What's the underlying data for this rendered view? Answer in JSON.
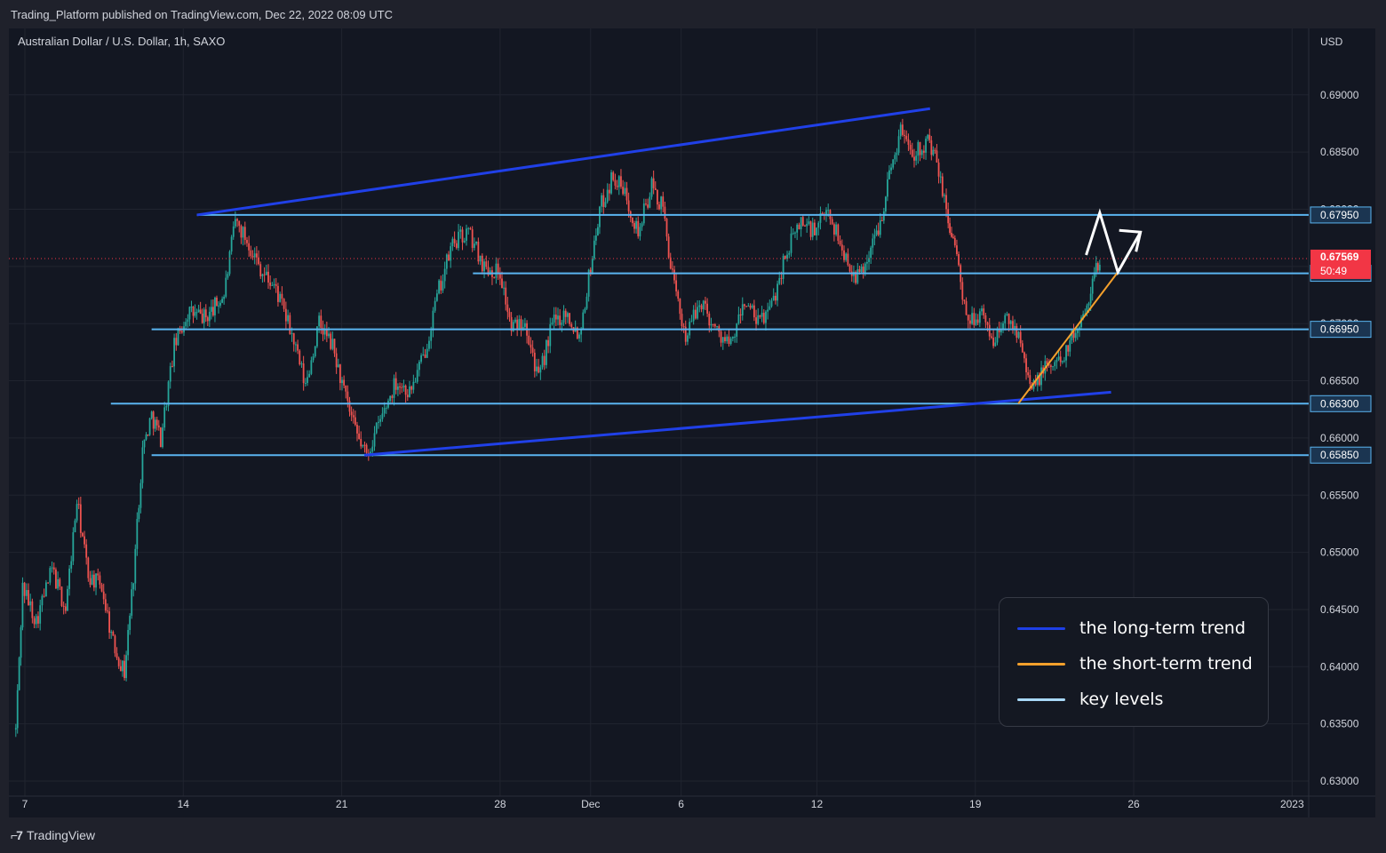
{
  "header": {
    "published_text": "Trading_Platform published on TradingView.com, Dec 22, 2022 08:09 UTC"
  },
  "footer": {
    "brand_label": "TradingView",
    "brand_icon": "tradingview-logo-icon"
  },
  "chart_data": {
    "type": "candlestick",
    "symbol_label": "Australian Dollar / U.S. Dollar, 1h, SAXO",
    "currency_label": "USD",
    "y_ticks": [
      "0.69000",
      "0.68500",
      "0.68000",
      "0.67500",
      "0.67000",
      "0.66500",
      "0.66000",
      "0.65500",
      "0.65000",
      "0.64500",
      "0.64000",
      "0.63500",
      "0.63000"
    ],
    "x_ticks": [
      {
        "label": "7",
        "day": 7
      },
      {
        "label": "14",
        "day": 14
      },
      {
        "label": "21",
        "day": 21
      },
      {
        "label": "28",
        "day": 28
      },
      {
        "label": "Dec",
        "day": 32
      },
      {
        "label": "6",
        "day": 36
      },
      {
        "label": "12",
        "day": 42
      },
      {
        "label": "19",
        "day": 49
      },
      {
        "label": "26",
        "day": 56
      },
      {
        "label": "2023",
        "day": 63
      }
    ],
    "ylim": [
      0.63,
      0.69
    ],
    "grid": true,
    "price_path": [
      [
        6.6,
        0.6345
      ],
      [
        6.9,
        0.647
      ],
      [
        7.5,
        0.644
      ],
      [
        8.2,
        0.6485
      ],
      [
        8.8,
        0.645
      ],
      [
        9.3,
        0.6545
      ],
      [
        9.8,
        0.648
      ],
      [
        10.4,
        0.647
      ],
      [
        10.9,
        0.642
      ],
      [
        11.4,
        0.6395
      ],
      [
        11.8,
        0.648
      ],
      [
        12.2,
        0.659
      ],
      [
        12.6,
        0.662
      ],
      [
        13.0,
        0.66
      ],
      [
        13.6,
        0.668
      ],
      [
        14.2,
        0.671
      ],
      [
        15.0,
        0.6705
      ],
      [
        15.8,
        0.6725
      ],
      [
        16.3,
        0.679
      ],
      [
        16.9,
        0.677
      ],
      [
        17.5,
        0.6745
      ],
      [
        18.1,
        0.673
      ],
      [
        18.8,
        0.669
      ],
      [
        19.4,
        0.6645
      ],
      [
        20.0,
        0.67
      ],
      [
        20.6,
        0.668
      ],
      [
        21.1,
        0.664
      ],
      [
        21.6,
        0.6605
      ],
      [
        22.1,
        0.6585
      ],
      [
        22.8,
        0.662
      ],
      [
        23.4,
        0.665
      ],
      [
        24.0,
        0.664
      ],
      [
        24.6,
        0.667
      ],
      [
        25.3,
        0.673
      ],
      [
        25.9,
        0.677
      ],
      [
        26.6,
        0.678
      ],
      [
        27.3,
        0.675
      ],
      [
        28.0,
        0.6745
      ],
      [
        28.5,
        0.6695
      ],
      [
        29.1,
        0.6705
      ],
      [
        29.7,
        0.665
      ],
      [
        30.3,
        0.67
      ],
      [
        30.9,
        0.671
      ],
      [
        31.5,
        0.669
      ],
      [
        32.0,
        0.675
      ],
      [
        32.4,
        0.68
      ],
      [
        33.0,
        0.683
      ],
      [
        33.6,
        0.681
      ],
      [
        34.1,
        0.678
      ],
      [
        34.7,
        0.682
      ],
      [
        35.2,
        0.68
      ],
      [
        35.7,
        0.673
      ],
      [
        36.2,
        0.669
      ],
      [
        36.9,
        0.672
      ],
      [
        37.5,
        0.6695
      ],
      [
        38.2,
        0.668
      ],
      [
        38.8,
        0.672
      ],
      [
        39.4,
        0.67
      ],
      [
        40.0,
        0.6715
      ],
      [
        40.6,
        0.676
      ],
      [
        41.3,
        0.679
      ],
      [
        41.9,
        0.678
      ],
      [
        42.5,
        0.68
      ],
      [
        43.2,
        0.676
      ],
      [
        43.8,
        0.674
      ],
      [
        44.3,
        0.676
      ],
      [
        44.8,
        0.679
      ],
      [
        45.2,
        0.683
      ],
      [
        45.7,
        0.687
      ],
      [
        46.3,
        0.685
      ],
      [
        46.9,
        0.686
      ],
      [
        47.3,
        0.684
      ],
      [
        47.8,
        0.679
      ],
      [
        48.1,
        0.677
      ],
      [
        48.6,
        0.67
      ],
      [
        49.2,
        0.671
      ],
      [
        49.8,
        0.6685
      ],
      [
        50.4,
        0.6705
      ],
      [
        51.0,
        0.669
      ],
      [
        51.5,
        0.664
      ],
      [
        52.0,
        0.666
      ],
      [
        52.6,
        0.6665
      ],
      [
        53.1,
        0.668
      ],
      [
        53.6,
        0.67
      ],
      [
        54.1,
        0.673
      ],
      [
        54.5,
        0.6757
      ]
    ],
    "annotations": {
      "key_levels": [
        {
          "value": 0.6795,
          "label": "0.67950",
          "from_day": 14.6
        },
        {
          "value": 0.6744,
          "label": "0.67440",
          "from_day": 26.8
        },
        {
          "value": 0.6695,
          "label": "0.66950",
          "from_day": 12.6
        },
        {
          "value": 0.663,
          "label": "0.66300",
          "from_day": 10.8
        },
        {
          "value": 0.6585,
          "label": "0.65850",
          "from_day": 12.6
        }
      ],
      "long_term_trend_lines": [
        [
          [
            14.6,
            0.6795
          ],
          [
            47.0,
            0.6888
          ]
        ],
        [
          [
            22.0,
            0.6585
          ],
          [
            55.0,
            0.664
          ]
        ]
      ],
      "short_term_trend_line": [
        [
          50.9,
          0.663
        ],
        [
          55.3,
          0.6745
        ]
      ],
      "projection_path": [
        [
          53.9,
          0.676
        ],
        [
          54.5,
          0.6797
        ],
        [
          55.3,
          0.6745
        ],
        [
          56.3,
          0.678
        ]
      ],
      "current_price": {
        "value": 0.67569,
        "label": "0.67569",
        "countdown": "50:49"
      }
    },
    "legend": [
      {
        "name": "the long-term trend",
        "color": "#1e3fe6"
      },
      {
        "name": "the short-term trend",
        "color": "#f4a02c"
      },
      {
        "name": "key levels",
        "color": "#a8d8f8"
      }
    ],
    "legend_position": "bottom-right",
    "colors": {
      "up_candle": "#26a69a",
      "down_candle": "#ef5350",
      "background": "#131722",
      "grid": "#20242f",
      "key_level": "#5ab4f0",
      "long_trend": "#2040e8",
      "short_trend": "#f4a02c",
      "projection": "#ffffff",
      "price_tag": "#f23645"
    }
  }
}
